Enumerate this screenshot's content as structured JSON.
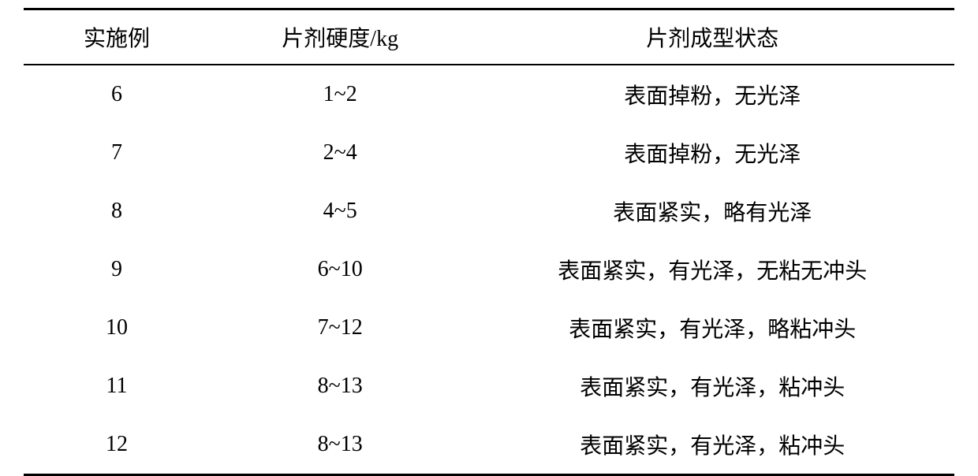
{
  "table": {
    "columns": [
      "实施例",
      "片剂硬度/kg",
      "片剂成型状态"
    ],
    "rows": [
      [
        "6",
        "1~2",
        "表面掉粉，无光泽"
      ],
      [
        "7",
        "2~4",
        "表面掉粉，无光泽"
      ],
      [
        "8",
        "4~5",
        "表面紧实，略有光泽"
      ],
      [
        "9",
        "6~10",
        "表面紧实，有光泽，无粘无冲头"
      ],
      [
        "10",
        "7~12",
        "表面紧实，有光泽，略粘冲头"
      ],
      [
        "11",
        "8~13",
        "表面紧实，有光泽，粘冲头"
      ],
      [
        "12",
        "8~13",
        "表面紧实，有光泽，粘冲头"
      ]
    ],
    "column_widths": [
      "20%",
      "28%",
      "52%"
    ],
    "font_size": 28,
    "text_color": "#000000",
    "background_color": "#ffffff",
    "border_color": "#000000",
    "header_border_top_width": 3,
    "header_border_bottom_width": 2,
    "footer_border_width": 3
  }
}
